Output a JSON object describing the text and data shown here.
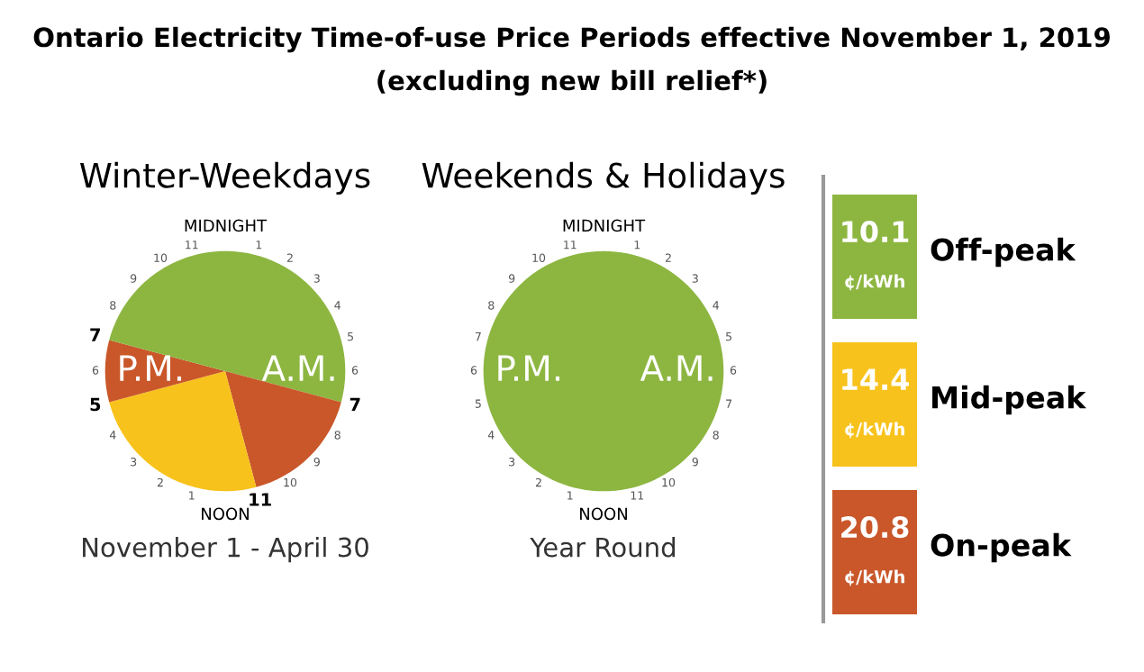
{
  "chart_data": [
    {
      "type": "other",
      "title": "Ontario Electricity Time-of-use Price Periods effective November 1, 2019",
      "subtitle": "(excluding new bill relief*)"
    },
    {
      "type": "pie",
      "title": "Winter-Weekdays",
      "subtitle": "November 1 - April 30",
      "categories": [
        null,
        null,
        null,
        null,
        null
      ],
      "values": [
        29.17,
        16.67,
        25,
        8.33,
        20.83
      ],
      "colors": [
        "#8db641",
        "#c9572a",
        "#f8c21c",
        "#c9572a",
        "#8db641"
      ],
      "annotations": [
        "MIDNIGHT",
        "1",
        "2",
        "3",
        "4",
        "5",
        "6",
        "7",
        "8",
        "9",
        "10",
        "11",
        "NOON",
        "1",
        "2",
        "3",
        "4",
        "5",
        "6",
        "7",
        "8",
        "9",
        "10",
        "11",
        "A.M.",
        "P.M."
      ]
    },
    {
      "type": "pie",
      "title": "Weekends & Holidays",
      "subtitle": "Year Round",
      "categories": [
        null
      ],
      "values": [
        100
      ],
      "colors": [
        "#8db641"
      ],
      "annotations": [
        "MIDNIGHT",
        "1",
        "2",
        "3",
        "4",
        "5",
        "6",
        "7",
        "8",
        "9",
        "10",
        "11",
        "NOON",
        "1",
        "2",
        "3",
        "4",
        "5",
        "6",
        "7",
        "8",
        "9",
        "10",
        "11",
        "A.M.",
        "P.M."
      ]
    },
    {
      "type": "other",
      "categories": [
        "Off-peak",
        "Mid-peak",
        "On-peak"
      ],
      "values": [
        10.1,
        14.4,
        20.8
      ],
      "colors": [
        "#8db641",
        "#f8c21c",
        "#c9572a"
      ],
      "value_labels": [
        "10.1",
        "14.4",
        "20.8"
      ],
      "annotations": [
        "¢/kWh"
      ]
    }
  ]
}
